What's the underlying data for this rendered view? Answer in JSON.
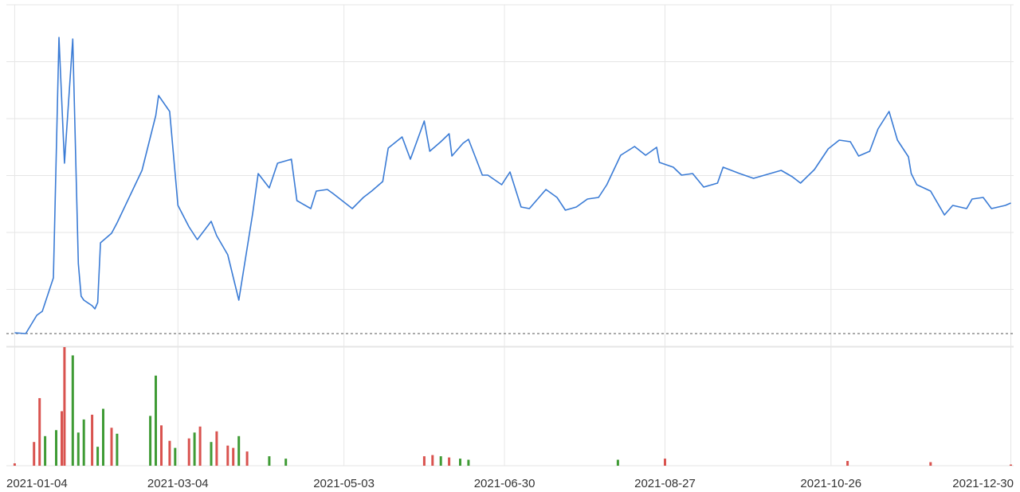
{
  "chart_data": {
    "type": "line",
    "subtype": "price-with-volume",
    "grid": true,
    "colors": {
      "line": "#3a7bd5",
      "volume_up": "#d9534f",
      "volume_down": "#3f9b35",
      "grid": "#e6e6e6",
      "baseline": "#555555"
    },
    "x_tick_labels": [
      "2021-01-04",
      "2021-03-04",
      "2021-05-03",
      "2021-06-30",
      "2021-08-27",
      "2021-10-26",
      "2021-12-30"
    ],
    "price_series": {
      "x": [
        "2021-01-04",
        "2021-01-08",
        "2021-01-12",
        "2021-01-14",
        "2021-01-18",
        "2021-01-20",
        "2021-01-22",
        "2021-01-25",
        "2021-01-27",
        "2021-01-28",
        "2021-01-29",
        "2021-02-01",
        "2021-02-02",
        "2021-02-03",
        "2021-02-04",
        "2021-02-08",
        "2021-02-10",
        "2021-02-19",
        "2021-02-24",
        "2021-02-25",
        "2021-03-01",
        "2021-03-04",
        "2021-03-08",
        "2021-03-11",
        "2021-03-16",
        "2021-03-18",
        "2021-03-22",
        "2021-03-26",
        "2021-03-31",
        "2021-04-02",
        "2021-04-06",
        "2021-04-09",
        "2021-04-14",
        "2021-04-16",
        "2021-04-21",
        "2021-04-23",
        "2021-04-27",
        "2021-04-29",
        "2021-05-06",
        "2021-05-10",
        "2021-05-13",
        "2021-05-17",
        "2021-05-19",
        "2021-05-24",
        "2021-05-27",
        "2021-06-01",
        "2021-06-03",
        "2021-06-07",
        "2021-06-10",
        "2021-06-11",
        "2021-06-15",
        "2021-06-17",
        "2021-06-22",
        "2021-06-24",
        "2021-06-29",
        "2021-07-02",
        "2021-07-06",
        "2021-07-09",
        "2021-07-15",
        "2021-07-19",
        "2021-07-22",
        "2021-07-26",
        "2021-07-30",
        "2021-08-03",
        "2021-08-06",
        "2021-08-11",
        "2021-08-16",
        "2021-08-20",
        "2021-08-24",
        "2021-08-25",
        "2021-08-30",
        "2021-09-02",
        "2021-09-06",
        "2021-09-10",
        "2021-09-15",
        "2021-09-17",
        "2021-09-23",
        "2021-09-28",
        "2021-10-08",
        "2021-10-12",
        "2021-10-15",
        "2021-10-20",
        "2021-10-25",
        "2021-10-29",
        "2021-11-02",
        "2021-11-05",
        "2021-11-09",
        "2021-11-12",
        "2021-11-16",
        "2021-11-19",
        "2021-11-23",
        "2021-11-24",
        "2021-11-26",
        "2021-12-01",
        "2021-12-06",
        "2021-12-09",
        "2021-12-14",
        "2021-12-16",
        "2021-12-20",
        "2021-12-23",
        "2021-12-28",
        "2021-12-30"
      ],
      "y": [
        418,
        419,
        396,
        391,
        349,
        47,
        205,
        49,
        331,
        372,
        377,
        384,
        388,
        380,
        305,
        293,
        280,
        214,
        145,
        120,
        140,
        258,
        285,
        301,
        278,
        296,
        320,
        377,
        268,
        218,
        236,
        205,
        200,
        252,
        262,
        240,
        238,
        243,
        262,
        248,
        240,
        228,
        186,
        172,
        200,
        152,
        190,
        178,
        168,
        196,
        180,
        175,
        220,
        220,
        232,
        216,
        260,
        262,
        238,
        248,
        264,
        260,
        250,
        248,
        232,
        195,
        184,
        195,
        185,
        204,
        210,
        220,
        218,
        235,
        230,
        210,
        218,
        224,
        214,
        222,
        230,
        213,
        187,
        176,
        178,
        196,
        190,
        162,
        140,
        176,
        197,
        218,
        232,
        240,
        270,
        258,
        262,
        250,
        248,
        262,
        258,
        255
      ]
    },
    "volume_series": {
      "x": [
        "2021-01-04",
        "2021-01-11",
        "2021-01-13",
        "2021-01-15",
        "2021-01-19",
        "2021-01-21",
        "2021-01-22",
        "2021-01-25",
        "2021-01-27",
        "2021-01-29",
        "2021-02-01",
        "2021-02-03",
        "2021-02-05",
        "2021-02-08",
        "2021-02-10",
        "2021-02-22",
        "2021-02-24",
        "2021-02-26",
        "2021-03-01",
        "2021-03-03",
        "2021-03-08",
        "2021-03-10",
        "2021-03-12",
        "2021-03-16",
        "2021-03-18",
        "2021-03-22",
        "2021-03-24",
        "2021-03-26",
        "2021-03-29",
        "2021-04-06",
        "2021-04-12",
        "2021-06-01",
        "2021-06-04",
        "2021-06-07",
        "2021-06-10",
        "2021-06-14",
        "2021-06-17",
        "2021-08-10",
        "2021-08-27",
        "2021-11-01",
        "2021-12-01",
        "2021-12-30"
      ],
      "y": [
        2,
        20,
        57,
        25,
        30,
        46,
        100,
        93,
        28,
        39,
        43,
        16,
        48,
        32,
        27,
        42,
        76,
        34,
        21,
        15,
        23,
        28,
        33,
        20,
        29,
        17,
        15,
        25,
        12,
        8,
        6,
        8,
        9,
        8,
        7,
        6,
        5,
        5,
        6,
        4,
        3,
        1
      ],
      "direction": [
        "up",
        "up",
        "up",
        "down",
        "down",
        "up",
        "up",
        "down",
        "down",
        "down",
        "up",
        "down",
        "down",
        "up",
        "down",
        "down",
        "down",
        "up",
        "up",
        "down",
        "up",
        "down",
        "up",
        "down",
        "up",
        "up",
        "up",
        "down",
        "up",
        "down",
        "down",
        "up",
        "up",
        "down",
        "up",
        "down",
        "down",
        "down",
        "up",
        "up",
        "up",
        "up"
      ]
    }
  }
}
